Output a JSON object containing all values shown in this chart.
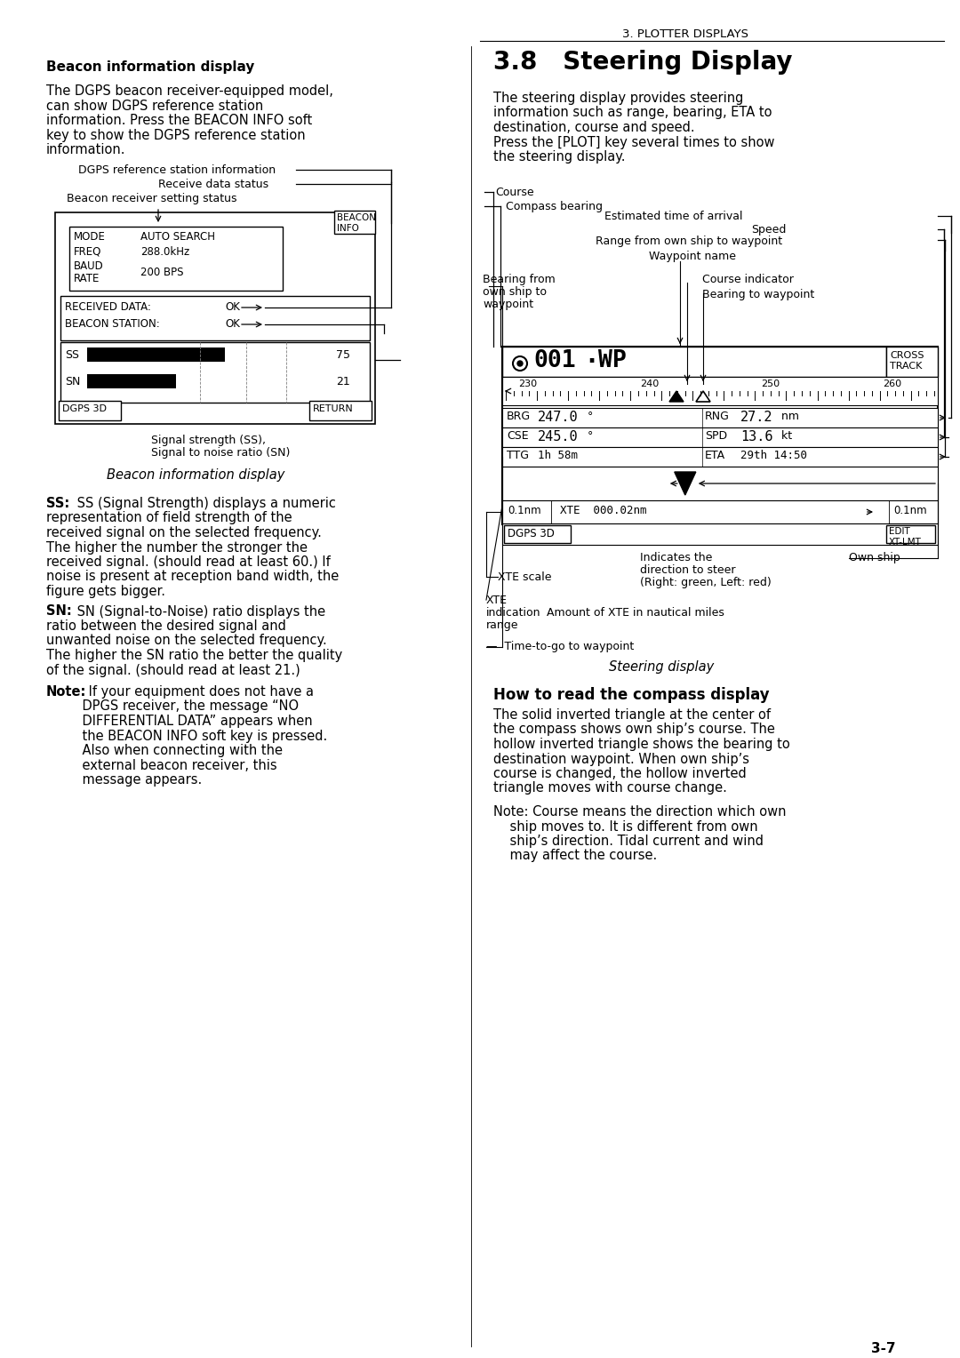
{
  "page_header": "3. PLOTTER DISPLAYS",
  "page_footer": "3-7",
  "bg_color": "#ffffff",
  "left_col": {
    "section_title": "Beacon information display",
    "para1_lines": [
      "The DGPS beacon receiver-equipped model,",
      "can show DGPS reference station",
      "information. Press the BEACON INFO soft",
      "key to show the DGPS reference station",
      "information."
    ],
    "label_dgps": "DGPS reference station information",
    "label_receive": "Receive data status",
    "label_beacon_recv": "Beacon receiver setting status",
    "signal_label_line1": "Signal strength (SS),",
    "signal_label_line2": "Signal to noise ratio (SN)",
    "caption": "Beacon information display",
    "ss_text_lines": [
      [
        "bold",
        "SS:"
      ],
      [
        "normal",
        " SS (Signal Strength) displays a numeric"
      ],
      [
        "normal",
        "representation of field strength of the"
      ],
      [
        "normal",
        "received signal on the selected frequency."
      ],
      [
        "normal",
        "The higher the number the stronger the"
      ],
      [
        "normal",
        "received signal. (should read at least 60.) If"
      ],
      [
        "normal",
        "noise is present at reception band width, the"
      ],
      [
        "normal",
        "figure gets bigger."
      ]
    ],
    "sn_text_lines": [
      [
        "bold",
        "SN:"
      ],
      [
        "normal",
        " SN (Signal-to-Noise) ratio displays the"
      ],
      [
        "normal",
        "ratio between the desired signal and"
      ],
      [
        "normal",
        "unwanted noise on the selected frequency."
      ],
      [
        "normal",
        "The higher the SN ratio the better the quality"
      ],
      [
        "normal",
        "of the signal. (should read at least 21.)"
      ]
    ],
    "note_lines": [
      [
        "bold",
        "Note:"
      ],
      [
        "normal",
        " If your equipment does not have a"
      ],
      [
        "normal",
        "    DPGS receiver, the message “NO"
      ],
      [
        "normal",
        "    DIFFERENTIAL DATA” appears when"
      ],
      [
        "normal",
        "    the BEACON INFO soft key is pressed."
      ],
      [
        "normal",
        "    Also when connecting with the"
      ],
      [
        "normal",
        "    external beacon receiver, this"
      ],
      [
        "normal",
        "    message appears."
      ]
    ]
  },
  "right_col": {
    "section_num": "3.8",
    "section_title": "Steering Display",
    "para1_lines": [
      "The steering display provides steering",
      "information such as range, bearing, ETA to",
      "destination, course and speed.",
      "Press the [PLOT] key several times to show",
      "the steering display."
    ],
    "compass_section_title": "How to read the compass display",
    "compass_para_lines": [
      "The solid inverted triangle at the center of",
      "the compass shows own ship’s course. The",
      "hollow inverted triangle shows the bearing to",
      "destination waypoint. When own ship’s",
      "course is changed, the hollow inverted",
      "triangle moves with course change."
    ],
    "compass_note_lines": [
      [
        "normal",
        "Note: Course means the direction which own"
      ],
      [
        "normal",
        "    ship moves to. It is different from own"
      ],
      [
        "normal",
        "    ship’s direction. Tidal current and wind"
      ],
      [
        "normal",
        "    may affect the course."
      ]
    ],
    "caption": "Steering display"
  }
}
